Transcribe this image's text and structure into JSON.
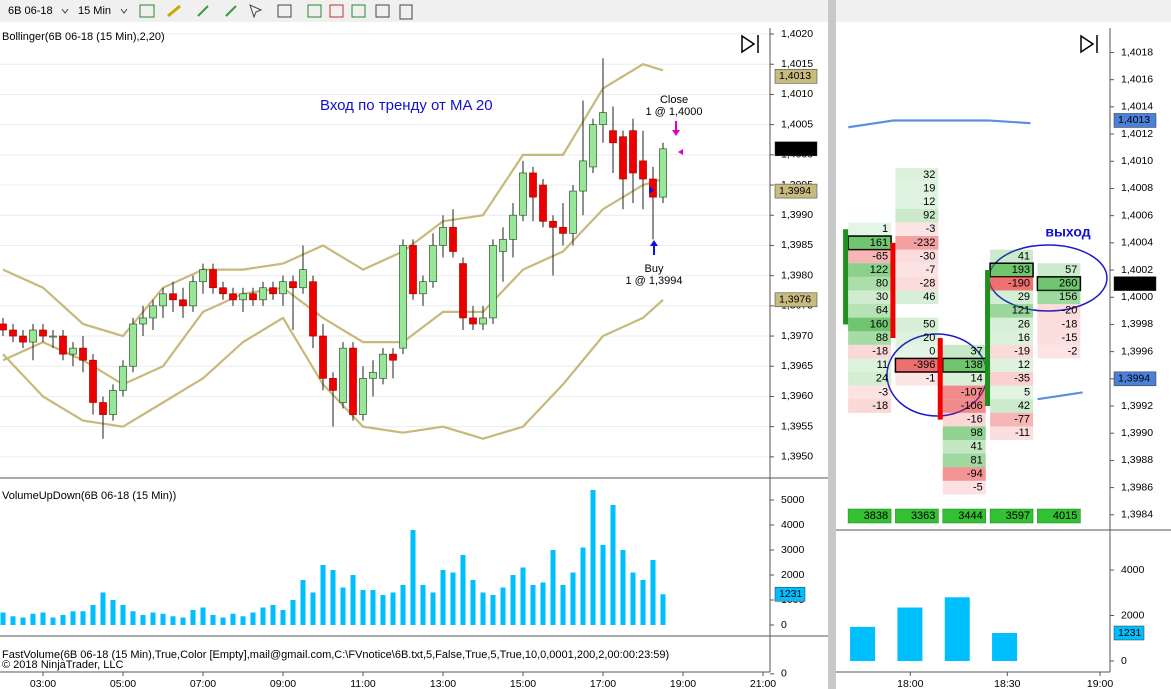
{
  "toolbar": {
    "symbol": "6B 06-18",
    "interval": "15 Min"
  },
  "copyright": "© 2018 NinjaTrader, LLC",
  "chart_data": [
    {
      "type": "candlestick",
      "title": "Bollinger(6B 06-18 (15 Min),2,20)",
      "open": [
        1.3972,
        1.3971,
        1.397,
        1.3969,
        1.3971,
        1.397,
        1.397,
        1.3967,
        1.3968,
        1.3966,
        1.3959,
        1.3957,
        1.3961,
        1.3965,
        1.3972,
        1.3973,
        1.3975,
        1.3977,
        1.3976,
        1.3975,
        1.3979,
        1.3981,
        1.3978,
        1.3977,
        1.3976,
        1.3977,
        1.3976,
        1.3978,
        1.3977,
        1.3979,
        1.3978,
        1.3979,
        1.397,
        1.3963,
        1.3959,
        1.3968,
        1.3957,
        1.3963,
        1.3963,
        1.3967,
        1.3968,
        1.3985,
        1.3977,
        1.3979,
        1.3985,
        1.3988,
        1.3982,
        1.3973,
        1.3972,
        1.3973,
        1.3984,
        1.3986,
        1.399,
        1.3997,
        1.3995,
        1.3989,
        1.3988,
        1.3987,
        1.3994,
        1.3998,
        1.4005,
        1.4004,
        1.4003,
        1.4004,
        1.3999,
        1.3996,
        1.3993
      ],
      "high": [
        1.3973,
        1.3972,
        1.3971,
        1.3972,
        1.3972,
        1.3971,
        1.3971,
        1.3969,
        1.397,
        1.3967,
        1.396,
        1.3962,
        1.3966,
        1.3973,
        1.3975,
        1.3976,
        1.3978,
        1.3979,
        1.3978,
        1.398,
        1.3982,
        1.3982,
        1.3979,
        1.3978,
        1.3978,
        1.3978,
        1.3979,
        1.3979,
        1.398,
        1.398,
        1.3985,
        1.398,
        1.3972,
        1.3964,
        1.3969,
        1.3969,
        1.3965,
        1.3966,
        1.3968,
        1.3968,
        1.3986,
        1.3986,
        1.398,
        1.3987,
        1.399,
        1.3991,
        1.3983,
        1.3975,
        1.3975,
        1.3986,
        1.3988,
        1.3992,
        1.3999,
        1.3998,
        1.3996,
        1.399,
        1.3992,
        1.3995,
        1.4009,
        1.4006,
        1.4016,
        1.4008,
        1.4004,
        1.4006,
        1.4004,
        1.3998,
        1.4002
      ],
      "low": [
        1.397,
        1.3969,
        1.3968,
        1.3966,
        1.3969,
        1.3968,
        1.3966,
        1.3965,
        1.3964,
        1.3957,
        1.3953,
        1.3956,
        1.396,
        1.3964,
        1.397,
        1.3971,
        1.3973,
        1.3974,
        1.3973,
        1.3974,
        1.3977,
        1.3977,
        1.3976,
        1.3975,
        1.3974,
        1.3975,
        1.3975,
        1.3976,
        1.3975,
        1.3971,
        1.3977,
        1.3968,
        1.3961,
        1.3955,
        1.3958,
        1.3956,
        1.3956,
        1.396,
        1.3962,
        1.3963,
        1.3967,
        1.3976,
        1.3975,
        1.3978,
        1.3983,
        1.3983,
        1.3971,
        1.3971,
        1.3971,
        1.3972,
        1.3979,
        1.3983,
        1.3989,
        1.3989,
        1.3988,
        1.398,
        1.3985,
        1.3985,
        1.399,
        1.3997,
        1.4002,
        1.3997,
        1.3991,
        1.3992,
        1.3991,
        1.3986,
        1.3992
      ],
      "close": [
        1.3971,
        1.397,
        1.3969,
        1.3971,
        1.397,
        1.397,
        1.3967,
        1.3968,
        1.3966,
        1.3959,
        1.3957,
        1.3961,
        1.3965,
        1.3972,
        1.3973,
        1.3975,
        1.3977,
        1.3976,
        1.3975,
        1.3979,
        1.3981,
        1.3978,
        1.3977,
        1.3976,
        1.3977,
        1.3976,
        1.3978,
        1.3977,
        1.3979,
        1.3978,
        1.3981,
        1.397,
        1.3963,
        1.3961,
        1.3968,
        1.3957,
        1.3963,
        1.3964,
        1.3967,
        1.3966,
        1.3985,
        1.3977,
        1.3979,
        1.3985,
        1.3988,
        1.3984,
        1.3973,
        1.3972,
        1.3973,
        1.3985,
        1.3986,
        1.399,
        1.3997,
        1.3993,
        1.3989,
        1.3988,
        1.3987,
        1.3994,
        1.3999,
        1.4005,
        1.4007,
        1.4002,
        1.3996,
        1.3997,
        1.3996,
        1.3993,
        1.4001
      ],
      "up_color": "#98e698",
      "down_color": "#ee0000",
      "lines": [
        {
          "color": "#c8b87a",
          "x": [
            0,
            4,
            8,
            12,
            16,
            20,
            24,
            28,
            32,
            36,
            40,
            44,
            48,
            52,
            56,
            60,
            64,
            66
          ],
          "values": [
            1.3981,
            1.3978,
            1.3972,
            1.397,
            1.3978,
            1.3981,
            1.3981,
            1.3982,
            1.3985,
            1.3981,
            1.3984,
            1.3989,
            1.399,
            1.4,
            1.4,
            1.4011,
            1.4015,
            1.4014
          ]
        },
        {
          "color": "#c8b87a",
          "x": [
            0,
            4,
            8,
            12,
            16,
            20,
            24,
            28,
            32,
            36,
            40,
            44,
            48,
            52,
            56,
            60,
            64,
            66
          ],
          "values": [
            1.3966,
            1.3969,
            1.3966,
            1.3962,
            1.3965,
            1.3974,
            1.3977,
            1.3978,
            1.3973,
            1.3969,
            1.3969,
            1.3974,
            1.3974,
            1.3981,
            1.3984,
            1.3991,
            1.3995,
            1.3996
          ]
        },
        {
          "color": "#c8b87a",
          "x": [
            0,
            4,
            8,
            12,
            16,
            20,
            24,
            28,
            32,
            36,
            40,
            44,
            48,
            52,
            56,
            60,
            64,
            66
          ],
          "values": [
            1.3967,
            1.396,
            1.3956,
            1.3955,
            1.3959,
            1.3963,
            1.3969,
            1.3973,
            1.3962,
            1.3955,
            1.3954,
            1.3955,
            1.3953,
            1.3955,
            1.3962,
            1.397,
            1.3973,
            1.3976
          ]
        }
      ],
      "xlim": [
        -0.3,
        76.7
      ],
      "xticks": [
        {
          "value": 4,
          "label": "03:00"
        },
        {
          "value": 12,
          "label": "05:00"
        },
        {
          "value": 20,
          "label": "07:00"
        },
        {
          "value": 28,
          "label": "09:00"
        },
        {
          "value": 36,
          "label": "11:00"
        },
        {
          "value": 44,
          "label": "13:00"
        },
        {
          "value": 52,
          "label": "15:00"
        },
        {
          "value": 60,
          "label": "17:00"
        },
        {
          "value": 68,
          "label": "19:00"
        },
        {
          "value": 76,
          "label": "21:00"
        }
      ],
      "ylim": [
        1.39465,
        1.4021
      ],
      "yticks": [
        {
          "value": 1.402,
          "label": "1,4020"
        },
        {
          "value": 1.4015,
          "label": "1,4015"
        },
        {
          "value": 1.401,
          "label": "1,4010"
        },
        {
          "value": 1.4005,
          "label": "1,4005"
        },
        {
          "value": 1.4,
          "label": "1,4000"
        },
        {
          "value": 1.3995,
          "label": "1,3995"
        },
        {
          "value": 1.399,
          "label": "1,3990"
        },
        {
          "value": 1.3985,
          "label": "1,3985"
        },
        {
          "value": 1.398,
          "label": "1,3980"
        },
        {
          "value": 1.3975,
          "label": "1,3975"
        },
        {
          "value": 1.397,
          "label": "1,3970"
        },
        {
          "value": 1.3965,
          "label": "1,3965"
        },
        {
          "value": 1.396,
          "label": "1,3960"
        },
        {
          "value": 1.3955,
          "label": "1,3955"
        },
        {
          "value": 1.395,
          "label": "1,3950"
        }
      ],
      "grid": true,
      "price_markers": [
        {
          "value": 1.4013,
          "label": "1,4013",
          "color": "#c8bb7e"
        },
        {
          "value": 1.4001,
          "label": "1,4001",
          "color": "#000000"
        },
        {
          "value": 1.3994,
          "label": "1,3994",
          "color": "#c8bb7e"
        },
        {
          "value": 1.3976,
          "label": "1,3976",
          "color": "#c8bb7e"
        }
      ],
      "annotations": {
        "title": "Вход по тренду от MA 20",
        "close": "Close",
        "close_fill": "1 @ 1,4000",
        "buy": "Buy",
        "buy_fill": "1 @ 1,3994"
      }
    },
    {
      "type": "bar",
      "title": "VolumeUpDown(6B 06-18 (15 Min))",
      "values": [
        500,
        350,
        300,
        450,
        500,
        300,
        400,
        550,
        550,
        800,
        1300,
        1000,
        800,
        550,
        400,
        500,
        450,
        350,
        300,
        600,
        700,
        400,
        300,
        450,
        350,
        500,
        700,
        800,
        600,
        1000,
        1800,
        1300,
        2400,
        2200,
        1500,
        2000,
        1400,
        1400,
        1200,
        1300,
        1600,
        3800,
        1600,
        1300,
        2200,
        2100,
        2800,
        1800,
        1300,
        1200,
        1500,
        2000,
        2300,
        1600,
        1700,
        3000,
        1600,
        2100,
        3100,
        5400,
        3200,
        4800,
        3000,
        2100,
        1800,
        2600,
        1231
      ],
      "color": "#00bfff",
      "ylim": [
        -440,
        5760
      ],
      "yticks": [
        0,
        1000,
        2000,
        3000,
        4000,
        5000
      ]
    },
    {
      "type": "indicator",
      "title": "FastVolume(6B 06-18 (15 Min),True,Color [Empty],mail@gmail.com,C:\\FVnotice\\6B.txt,5,False,True,5,True,10,0,0001,200,2,00:00:23:59)",
      "ylim": [
        -1,
        2.5
      ],
      "yticks": [
        0
      ]
    },
    {
      "type": "footprint",
      "columns": [
        {
          "top": 1.4005,
          "open": 1.3998,
          "close": 1.4005,
          "values": [
            1,
            161,
            -65,
            122,
            80,
            30,
            64,
            160,
            88,
            -18,
            11,
            24,
            -3,
            -18
          ]
        },
        {
          "top": 1.4009,
          "open": 1.4004,
          "close": 1.3997,
          "values": [
            32,
            19,
            12,
            92,
            -3,
            -232,
            -30,
            -7,
            -28,
            46,
            null,
            50,
            20,
            0,
            -396,
            -1
          ]
        },
        {
          "top": 1.3996,
          "open": 1.3997,
          "close": 1.3991,
          "values": [
            37,
            138,
            14,
            -107,
            -106,
            -16,
            98,
            41,
            81,
            -94,
            -5
          ]
        },
        {
          "top": 1.4003,
          "open": 1.3992,
          "close": 1.4002,
          "values": [
            41,
            193,
            -190,
            29,
            121,
            26,
            16,
            -19,
            12,
            -35,
            5,
            42,
            -77,
            -11
          ]
        },
        {
          "top": 1.4002,
          "values": [
            57,
            260,
            156,
            -20,
            -18,
            -15,
            -2
          ]
        }
      ],
      "totals": [
        3838,
        3363,
        3444,
        3597,
        4015
      ],
      "up_color": "#1f8f1f",
      "down_color": "#ee0000",
      "lines": [
        {
          "color": "#5b8fe0",
          "x": [
            -0.45,
            0.5,
            1.5,
            2.5,
            3.4
          ],
          "values": [
            1.40125,
            1.4013,
            1.4013,
            1.4013,
            1.40128
          ]
        },
        {
          "color": "#5b8fe0",
          "x": [
            3.55,
            4.5
          ],
          "values": [
            1.39925,
            1.3993
          ]
        }
      ],
      "xlim": [
        -0.71,
        5.08
      ],
      "ylim": [
        1.39845,
        1.40198
      ],
      "yticks": [
        {
          "value": 1.4018,
          "label": "1,4018"
        },
        {
          "value": 1.4016,
          "label": "1,4016"
        },
        {
          "value": 1.4014,
          "label": "1,4014"
        },
        {
          "value": 1.4012,
          "label": "1,4012"
        },
        {
          "value": 1.401,
          "label": "1,4010"
        },
        {
          "value": 1.4008,
          "label": "1,4008"
        },
        {
          "value": 1.4006,
          "label": "1,4006"
        },
        {
          "value": 1.4004,
          "label": "1,4004"
        },
        {
          "value": 1.4002,
          "label": "1,4002"
        },
        {
          "value": 1.4,
          "label": "1,4000"
        },
        {
          "value": 1.3998,
          "label": "1,3998"
        },
        {
          "value": 1.3996,
          "label": "1,3996"
        },
        {
          "value": 1.3994,
          "label": "1,3994"
        },
        {
          "value": 1.3992,
          "label": "1,3992"
        },
        {
          "value": 1.399,
          "label": "1,3990"
        },
        {
          "value": 1.3988,
          "label": "1,3988"
        },
        {
          "value": 1.3986,
          "label": "1,3986"
        },
        {
          "value": 1.3984,
          "label": "1,3984"
        }
      ],
      "price_markers": [
        {
          "value": 1.4013,
          "label": "1,4013",
          "color": "#4a80d8"
        },
        {
          "value": 1.4001,
          "label": "1,4001",
          "color": "#000000"
        },
        {
          "value": 1.3994,
          "label": "1,3994",
          "color": "#4a80d8"
        }
      ],
      "annotation": "выход"
    },
    {
      "type": "bar",
      "values": [
        1500,
        2350,
        2800,
        1231
      ],
      "color": "#00bfff",
      "xlim": [
        -0.71,
        5.08
      ],
      "ylim": [
        -1230,
        5450
      ],
      "yticks": [
        0,
        2000,
        4000
      ],
      "xticks": [
        {
          "value": 0.86,
          "label": "18:00"
        },
        {
          "value": 2.91,
          "label": "18:30"
        },
        {
          "value": 4.87,
          "label": "19:00"
        }
      ]
    }
  ]
}
